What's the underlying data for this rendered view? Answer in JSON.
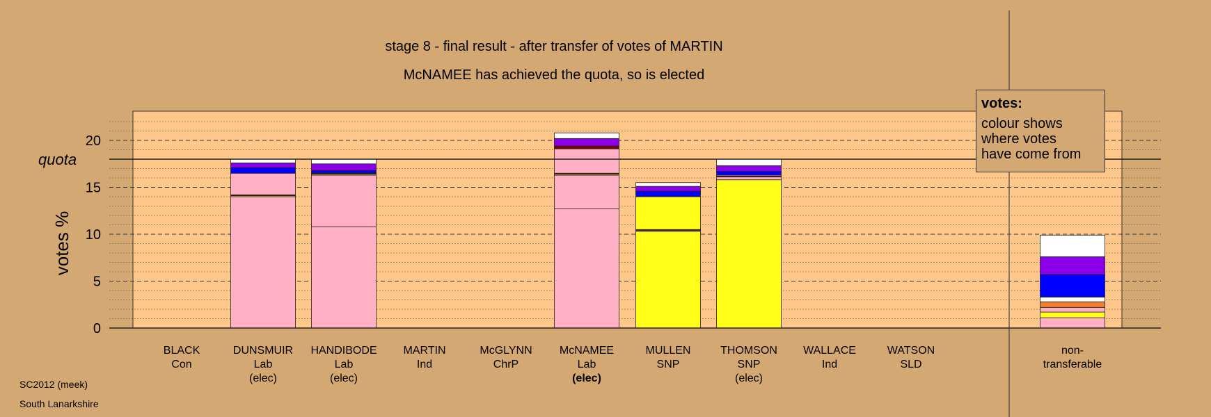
{
  "chart_data": {
    "type": "bar",
    "stacked": true,
    "title": "stage 8 - final result - after transfer of votes of MARTIN",
    "subtitle": "McNAMEE has achieved the quota, so is elected",
    "ylabel": "votes %",
    "ylim": [
      0,
      22.5
    ],
    "yticks": [
      0,
      5,
      10,
      15,
      20
    ],
    "quota": 18.0,
    "quota_label": "quota",
    "grid": true,
    "categories": [
      {
        "name": "BLACK",
        "party": "Con",
        "status": "",
        "bold": false
      },
      {
        "name": "DUNSMUIR",
        "party": "Lab",
        "status": "(elec)",
        "bold": false
      },
      {
        "name": "HANDIBODE",
        "party": "Lab",
        "status": "(elec)",
        "bold": false
      },
      {
        "name": "MARTIN",
        "party": "Ind",
        "status": "",
        "bold": false
      },
      {
        "name": "McGLYNN",
        "party": "ChrP",
        "status": "",
        "bold": false
      },
      {
        "name": "McNAMEE",
        "party": "Lab",
        "status": "(elec)",
        "bold": true
      },
      {
        "name": "MULLEN",
        "party": "SNP",
        "status": "",
        "bold": false
      },
      {
        "name": "THOMSON",
        "party": "SNP",
        "status": "(elec)",
        "bold": false
      },
      {
        "name": "WALLACE",
        "party": "Ind",
        "status": "",
        "bold": false
      },
      {
        "name": "WATSON",
        "party": "SLD",
        "status": "",
        "bold": false
      },
      {
        "name": "non-",
        "party": "transferable",
        "status": "",
        "bold": false
      }
    ],
    "segment_colors": {
      "Lab": "#ffb0c4",
      "SNP": "#ffff19",
      "Con": "#0000ff",
      "ChrP": "#800000",
      "SLD": "#f08030",
      "Ind": "#8b00e8",
      "MARTIN": "#ffffff"
    },
    "bars": [
      [],
      [
        {
          "src": "Lab",
          "value": 14.0
        },
        {
          "src": "SNP",
          "value": 0.1
        },
        {
          "src": "ChrP",
          "value": 0.1
        },
        {
          "src": "Lab",
          "value": 2.3
        },
        {
          "src": "Con",
          "value": 0.6
        },
        {
          "src": "Ind",
          "value": 0.5
        },
        {
          "src": "MARTIN",
          "value": 0.4
        }
      ],
      [
        {
          "src": "Lab",
          "value": 10.8
        },
        {
          "src": "Lab",
          "value": 5.5
        },
        {
          "src": "SNP",
          "value": 0.1
        },
        {
          "src": "ChrP",
          "value": 0.1
        },
        {
          "src": "Con",
          "value": 0.3
        },
        {
          "src": "Ind",
          "value": 0.7
        },
        {
          "src": "MARTIN",
          "value": 0.5
        }
      ],
      [],
      [],
      [
        {
          "src": "Lab",
          "value": 12.7
        },
        {
          "src": "Lab",
          "value": 3.6
        },
        {
          "src": "SNP",
          "value": 0.1
        },
        {
          "src": "ChrP",
          "value": 0.1
        },
        {
          "src": "Lab",
          "value": 2.6
        },
        {
          "src": "ChrP",
          "value": 0.3
        },
        {
          "src": "Ind",
          "value": 0.8
        },
        {
          "src": "MARTIN",
          "value": 0.6
        }
      ],
      [
        {
          "src": "SNP",
          "value": 10.3
        },
        {
          "src": "Lab",
          "value": 0.1
        },
        {
          "src": "ChrP",
          "value": 0.1
        },
        {
          "src": "SNP",
          "value": 3.5
        },
        {
          "src": "Con",
          "value": 0.6
        },
        {
          "src": "Ind",
          "value": 0.5
        },
        {
          "src": "MARTIN",
          "value": 0.4
        }
      ],
      [
        {
          "src": "SNP",
          "value": 15.8
        },
        {
          "src": "Lab",
          "value": 0.3
        },
        {
          "src": "ChrP",
          "value": 0.1
        },
        {
          "src": "Lab",
          "value": 0.1
        },
        {
          "src": "Con",
          "value": 0.4
        },
        {
          "src": "Ind",
          "value": 0.6
        },
        {
          "src": "MARTIN",
          "value": 0.7
        }
      ],
      [],
      [],
      [
        {
          "src": "Lab",
          "value": 1.1
        },
        {
          "src": "SNP",
          "value": 0.6
        },
        {
          "src": "Lab",
          "value": 0.5
        },
        {
          "src": "SLD",
          "value": 0.6
        },
        {
          "src": "MARTIN",
          "value": 0.5
        },
        {
          "src": "Con",
          "value": 2.4
        },
        {
          "src": "Ind",
          "value": 1.9
        },
        {
          "src": "MARTIN",
          "value": 2.3
        }
      ]
    ]
  },
  "legend": {
    "title": "votes:",
    "lines": [
      "colour shows",
      "where votes",
      "have come from"
    ]
  },
  "footer": {
    "source": "SC2012 (meek)",
    "area": "South Lanarkshire"
  },
  "colors": {
    "background": "#d4a872",
    "plot_area": "#ffc88a"
  }
}
